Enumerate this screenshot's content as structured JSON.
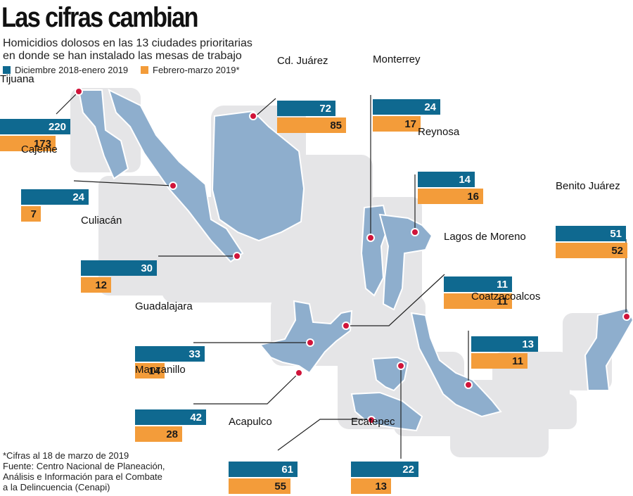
{
  "header": {
    "title": "Las cifras cambian",
    "subtitle_line1": "Homicidios dolosos en las 13 ciudades prioritarias",
    "subtitle_line2": "en donde se han instalado las mesas de trabajo"
  },
  "colors": {
    "series1": "#0f6990",
    "series2": "#f39c3a",
    "highlight": "#8eaecd",
    "land": "#e5e5e7",
    "dot": "#d0143a"
  },
  "chart_data": {
    "type": "bar",
    "categories": [
      "Tijuana",
      "Cajeme",
      "Culiacán",
      "Guadalajara",
      "Manzanillo",
      "Acapulco",
      "Cd. Juárez",
      "Monterrey",
      "Reynosa",
      "Lagos de Moreno",
      "Coatzacoalcos",
      "Benito Juárez",
      "Ecatepec"
    ],
    "series": [
      {
        "name": "Diciembre 2018-enero 2019",
        "values": [
          220,
          24,
          30,
          33,
          42,
          61,
          72,
          24,
          14,
          11,
          13,
          51,
          22
        ]
      },
      {
        "name": "Febrero-marzo 2019*",
        "values": [
          173,
          7,
          12,
          14,
          28,
          55,
          85,
          17,
          16,
          11,
          11,
          52,
          13
        ]
      }
    ],
    "legend": "top-left"
  },
  "footnote": {
    "line1": "*Cifras al 18 de marzo de 2019",
    "line2": "Fuente: Centro Nacional de Planeación,",
    "line3": "Análisis e Información para el Combate",
    "line4": "a la Delincuencia (Cenapi)"
  }
}
